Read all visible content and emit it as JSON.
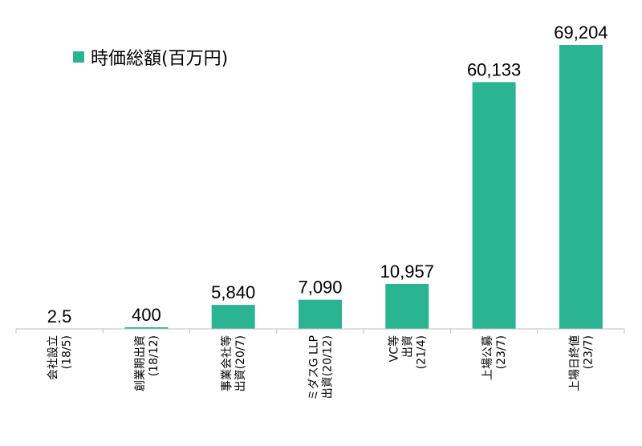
{
  "chart_data": {
    "type": "bar",
    "categories": [
      "会社設立(18/5)",
      "創業期出資(18/12)",
      "事業会社等出資(20/7)",
      "ミダスG LLP出資(20/12)",
      "VC等出資(21/4)",
      "上場公募(23/7)",
      "上場日終値(23/7)"
    ],
    "category_lines": [
      [
        "会社設立",
        "(18/5)"
      ],
      [
        "創業期出資",
        "(18/12)"
      ],
      [
        "事業会社等",
        "出資(20/7)"
      ],
      [
        "ミダスG LLP",
        "出資(20/12)"
      ],
      [
        "VC等",
        "出資",
        "(21/4)"
      ],
      [
        "上場公募",
        "(23/7)"
      ],
      [
        "上場日終値",
        "(23/7)"
      ]
    ],
    "series": [
      {
        "name": "時価総額(百万円)",
        "values": [
          2.5,
          400,
          5840,
          7090,
          10957,
          60133,
          69204
        ]
      }
    ],
    "value_labels": [
      "2.5",
      "400",
      "5,840",
      "7,090",
      "10,957",
      "60,133",
      "69,204"
    ],
    "title": "",
    "xlabel": "",
    "ylabel": "",
    "ylim": [
      0,
      70000
    ],
    "grid": false,
    "legend_position": "top-left",
    "colors": {
      "bar": "#2bb492",
      "axis": "#bfbfbf",
      "text": "#000000"
    }
  }
}
